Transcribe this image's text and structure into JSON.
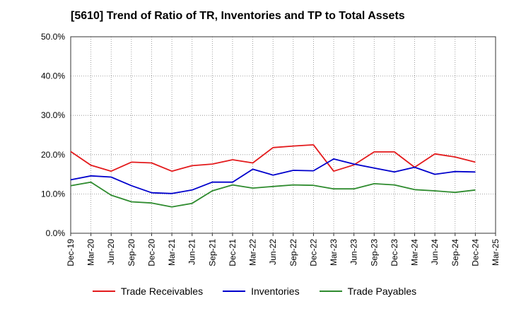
{
  "chart_data": {
    "type": "line",
    "title": "[5610]  Trend of Ratio of TR, Inventories and TP to Total Assets",
    "x": [
      "Dec-19",
      "Mar-20",
      "Jun-20",
      "Sep-20",
      "Dec-20",
      "Mar-21",
      "Jun-21",
      "Sep-21",
      "Dec-21",
      "Mar-22",
      "Jun-22",
      "Sep-22",
      "Dec-22",
      "Mar-23",
      "Jun-23",
      "Sep-23",
      "Dec-23",
      "Mar-24",
      "Jun-24",
      "Sep-24",
      "Dec-24"
    ],
    "x_ticks": [
      "Dec-19",
      "Mar-20",
      "Jun-20",
      "Sep-20",
      "Dec-20",
      "Mar-21",
      "Jun-21",
      "Sep-21",
      "Dec-21",
      "Mar-22",
      "Jun-22",
      "Sep-22",
      "Dec-22",
      "Mar-23",
      "Jun-23",
      "Sep-23",
      "Dec-23",
      "Mar-24",
      "Jun-24",
      "Sep-24",
      "Dec-24",
      "Mar-25"
    ],
    "y_ticks": [
      "0.0%",
      "10.0%",
      "20.0%",
      "30.0%",
      "40.0%",
      "50.0%"
    ],
    "ylim": [
      0,
      50
    ],
    "grid": true,
    "legend_position": "bottom",
    "series": [
      {
        "name": "Trade Receivables",
        "color": "#e31a1c",
        "values": [
          20.8,
          17.3,
          15.8,
          18.1,
          17.9,
          15.8,
          17.2,
          17.6,
          18.7,
          17.9,
          21.8,
          22.2,
          22.5,
          15.8,
          17.4,
          20.7,
          20.7,
          16.8,
          20.2,
          19.4,
          18.1
        ]
      },
      {
        "name": "Inventories",
        "color": "#0000cc",
        "values": [
          13.6,
          14.6,
          14.3,
          12.1,
          10.3,
          10.1,
          11.0,
          13.0,
          13.0,
          16.3,
          14.8,
          16.0,
          15.9,
          18.9,
          17.6,
          16.6,
          15.6,
          16.8,
          15.0,
          15.7,
          15.6
        ]
      },
      {
        "name": "Trade Payables",
        "color": "#2e8b2e",
        "values": [
          12.1,
          13.0,
          9.7,
          8.0,
          7.7,
          6.7,
          7.6,
          10.8,
          12.3,
          11.5,
          11.9,
          12.3,
          12.2,
          11.3,
          11.3,
          12.6,
          12.3,
          11.1,
          10.8,
          10.4,
          11.0
        ]
      }
    ]
  }
}
